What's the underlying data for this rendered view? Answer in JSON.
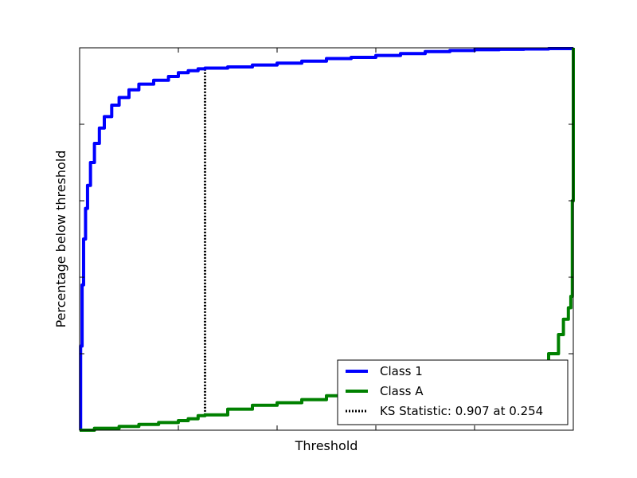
{
  "chart_data": {
    "type": "line",
    "title": "",
    "xlabel": "Threshold",
    "ylabel": "Percentage below threshold",
    "xlim": [
      0,
      1
    ],
    "ylim": [
      0,
      1
    ],
    "tick_labels_visible": false,
    "grid": false,
    "legend_position": "lower-right",
    "series": [
      {
        "name": "Class 1",
        "color": "#0000ff",
        "line_style": "solid",
        "x": [
          0.0,
          0.002,
          0.005,
          0.008,
          0.012,
          0.016,
          0.022,
          0.03,
          0.04,
          0.05,
          0.065,
          0.08,
          0.1,
          0.12,
          0.15,
          0.18,
          0.2,
          0.22,
          0.24,
          0.254,
          0.3,
          0.35,
          0.4,
          0.45,
          0.5,
          0.55,
          0.6,
          0.65,
          0.7,
          0.75,
          0.8,
          0.85,
          0.9,
          0.95,
          1.0
        ],
        "y": [
          0.0,
          0.22,
          0.38,
          0.5,
          0.58,
          0.64,
          0.7,
          0.75,
          0.79,
          0.82,
          0.85,
          0.87,
          0.89,
          0.905,
          0.915,
          0.925,
          0.935,
          0.94,
          0.945,
          0.947,
          0.95,
          0.955,
          0.96,
          0.965,
          0.972,
          0.975,
          0.98,
          0.985,
          0.99,
          0.993,
          0.995,
          0.996,
          0.997,
          0.998,
          1.0
        ]
      },
      {
        "name": "Class A",
        "color": "#008000",
        "line_style": "solid",
        "x": [
          0.0,
          0.03,
          0.08,
          0.12,
          0.16,
          0.2,
          0.22,
          0.24,
          0.254,
          0.3,
          0.35,
          0.4,
          0.45,
          0.5,
          0.55,
          0.6,
          0.65,
          0.7,
          0.75,
          0.8,
          0.85,
          0.9,
          0.93,
          0.95,
          0.97,
          0.98,
          0.99,
          0.995,
          0.998,
          1.0
        ],
        "y": [
          0.0,
          0.005,
          0.01,
          0.015,
          0.02,
          0.025,
          0.03,
          0.038,
          0.04,
          0.055,
          0.065,
          0.072,
          0.08,
          0.09,
          0.095,
          0.1,
          0.105,
          0.11,
          0.115,
          0.125,
          0.135,
          0.15,
          0.17,
          0.2,
          0.25,
          0.29,
          0.32,
          0.35,
          0.6,
          1.0
        ]
      }
    ],
    "ks_line": {
      "name": "KS Statistic: 0.907 at 0.254",
      "color": "#000000",
      "line_style": "dotted",
      "x": 0.254,
      "y_low": 0.04,
      "y_high": 0.947
    }
  }
}
